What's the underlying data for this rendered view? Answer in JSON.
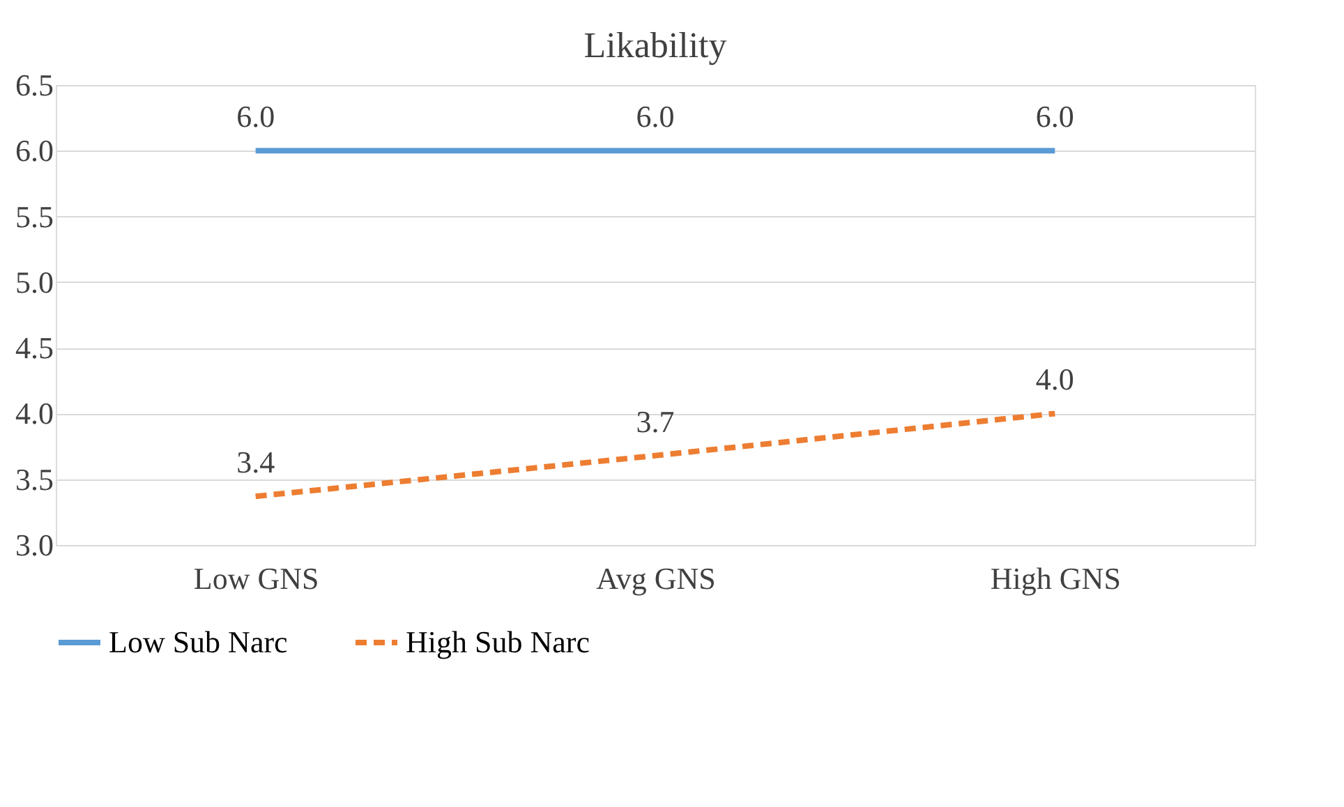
{
  "chart_data": {
    "type": "line",
    "title": "Likability",
    "categories": [
      "Low GNS",
      "Avg GNS",
      "High GNS"
    ],
    "series": [
      {
        "name": "Low Sub Narc",
        "color": "#5b9bd5",
        "line_style": "solid",
        "values": [
          6.0,
          6.0,
          6.0
        ],
        "value_labels": [
          "6.0",
          "6.0",
          "6.0"
        ]
      },
      {
        "name": "High Sub Narc",
        "color": "#ed7d31",
        "line_style": "dashed",
        "values": [
          3.37,
          3.68,
          4.0
        ],
        "value_labels": [
          "3.4",
          "3.7",
          "4.0"
        ]
      }
    ],
    "ylim": [
      3.0,
      6.5
    ],
    "yticks": [
      {
        "value": 3.0,
        "label": "3.0"
      },
      {
        "value": 3.5,
        "label": "3.5"
      },
      {
        "value": 4.0,
        "label": "4.0"
      },
      {
        "value": 4.5,
        "label": "4.5"
      },
      {
        "value": 5.0,
        "label": "5.0"
      },
      {
        "value": 5.5,
        "label": "5.5"
      },
      {
        "value": 6.0,
        "label": "6.0"
      },
      {
        "value": 6.5,
        "label": "6.5"
      }
    ],
    "grid": "y",
    "legend": "bottom",
    "marker": "none"
  }
}
